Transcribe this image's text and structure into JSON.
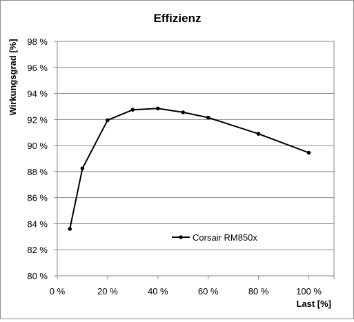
{
  "chart_data": {
    "type": "line",
    "title": "Effizienz",
    "xlabel": "Last [%]",
    "ylabel": "Wirkungsgrad [%]",
    "xlim": [
      0,
      110
    ],
    "ylim": [
      80,
      98
    ],
    "xticks": [
      0,
      20,
      40,
      60,
      80,
      100
    ],
    "yticks": [
      80,
      82,
      84,
      86,
      88,
      90,
      92,
      94,
      96,
      98
    ],
    "xtick_labels": [
      "0 %",
      "20 %",
      "40 %",
      "60 %",
      "80 %",
      "100 %"
    ],
    "ytick_labels": [
      "80 %",
      "82 %",
      "84 %",
      "86 %",
      "88 %",
      "90 %",
      "92 %",
      "94 %",
      "96 %",
      "98 %"
    ],
    "grid": "horizontal",
    "legend_position": "inside-lower-center",
    "series": [
      {
        "name": "Corsair RM850x",
        "color": "#000000",
        "x": [
          5,
          10,
          20,
          30,
          40,
          50,
          60,
          80,
          100
        ],
        "y": [
          83.6,
          88.25,
          91.95,
          92.75,
          92.85,
          92.55,
          92.15,
          90.9,
          89.45
        ]
      }
    ]
  }
}
